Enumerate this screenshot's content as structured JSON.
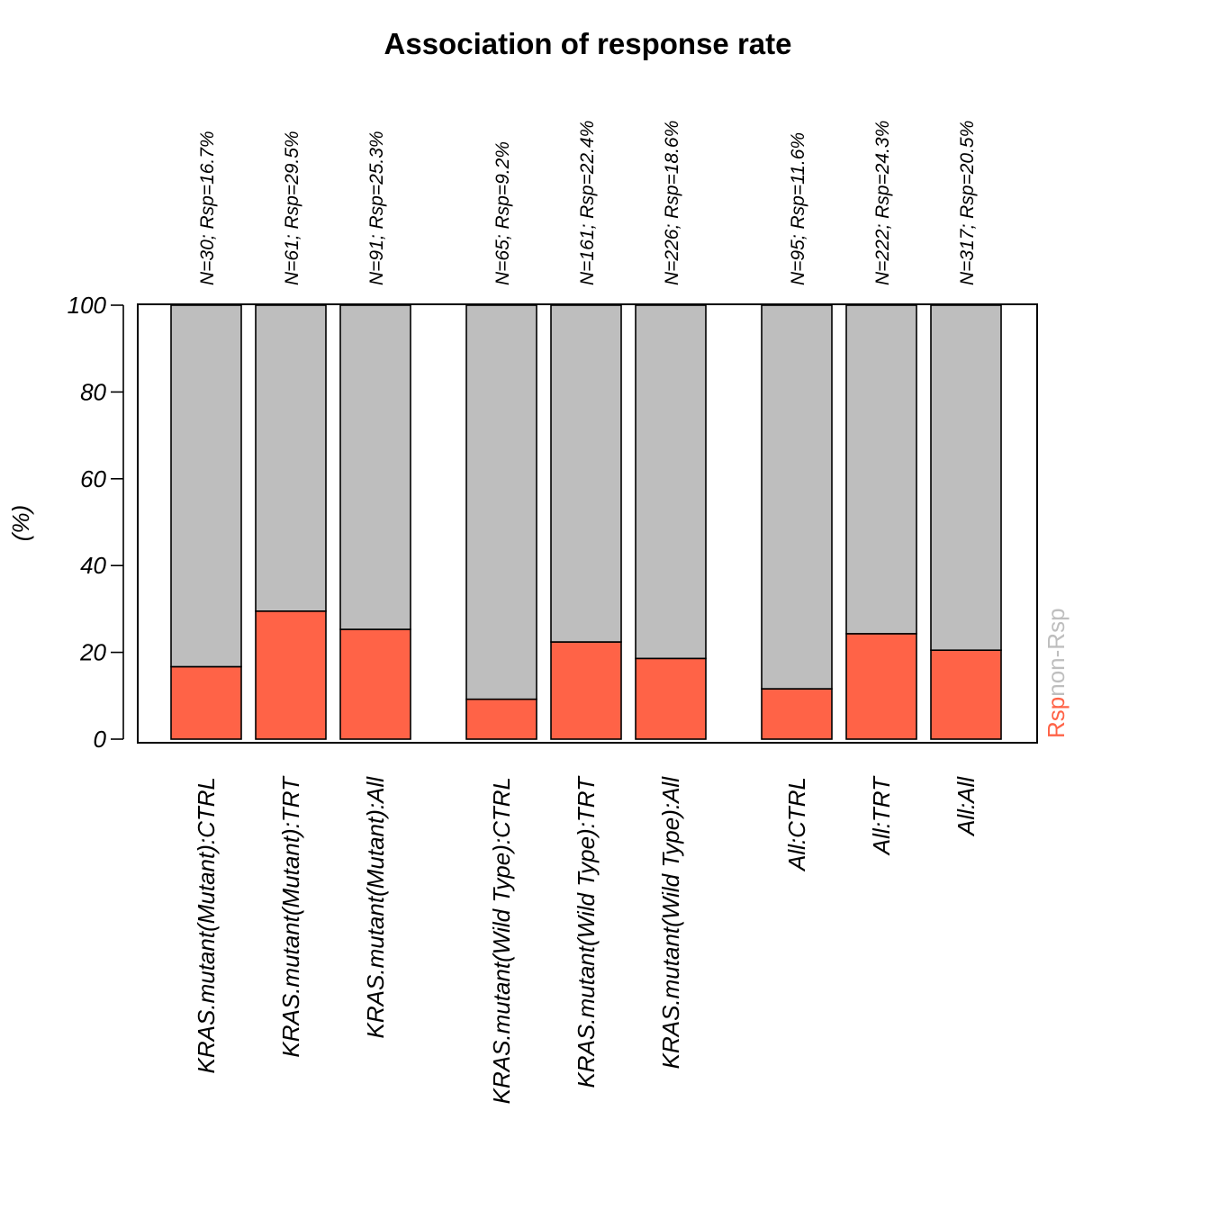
{
  "chart_data": {
    "type": "bar",
    "stacked": true,
    "title": "Association of response rate",
    "xlabel": "",
    "ylabel": "(%)",
    "ylim": [
      0,
      100
    ],
    "yticks": [
      "0",
      "20",
      "40",
      "60",
      "80",
      "100"
    ],
    "grid": false,
    "legend_position": "right-bottom (rotated, outside plot)",
    "categories": [
      "KRAS.mutant(Mutant):CTRL",
      "KRAS.mutant(Mutant):TRT",
      "KRAS.mutant(Mutant):All",
      "KRAS.mutant(Wild Type):CTRL",
      "KRAS.mutant(Wild Type):TRT",
      "KRAS.mutant(Wild Type):All",
      "All:CTRL",
      "All:TRT",
      "All:All"
    ],
    "groups": [
      [
        0,
        1,
        2
      ],
      [
        3,
        4,
        5
      ],
      [
        6,
        7,
        8
      ]
    ],
    "annotations": [
      "N=30; Rsp=16.7%",
      "N=61; Rsp=29.5%",
      "N=91; Rsp=25.3%",
      "N=65; Rsp=9.2%",
      "N=161; Rsp=22.4%",
      "N=226; Rsp=18.6%",
      "N=95; Rsp=11.6%",
      "N=222; Rsp=24.3%",
      "N=317; Rsp=20.5%"
    ],
    "series": [
      {
        "name": "Rsp",
        "color": "#ff6347",
        "values": [
          16.7,
          29.5,
          25.3,
          9.2,
          22.4,
          18.6,
          11.6,
          24.3,
          20.5
        ]
      },
      {
        "name": "non-Rsp",
        "color": "#bebebe",
        "values": [
          83.3,
          70.5,
          74.7,
          90.8,
          77.6,
          81.4,
          88.4,
          75.7,
          79.5
        ]
      }
    ]
  }
}
